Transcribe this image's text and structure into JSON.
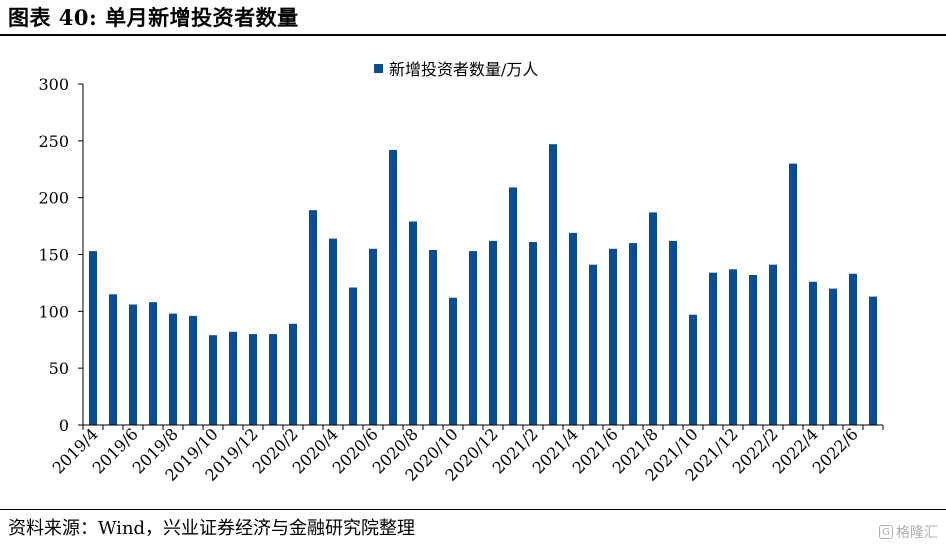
{
  "title": "图表 40:  单月新增投资者数量",
  "source": "资料来源：Wind，兴业证券经济与金融研究院整理",
  "watermark": {
    "icon": "G",
    "text": "格隆汇"
  },
  "colors": {
    "bar": "#0a4d94",
    "axis": "#000000"
  },
  "chart_data": {
    "type": "bar",
    "categories": [
      "2019/4",
      "2019/5",
      "2019/6",
      "2019/7",
      "2019/8",
      "2019/9",
      "2019/10",
      "2019/11",
      "2019/12",
      "2020/1",
      "2020/2",
      "2020/3",
      "2020/4",
      "2020/5",
      "2020/6",
      "2020/7",
      "2020/8",
      "2020/9",
      "2020/10",
      "2020/11",
      "2020/12",
      "2021/1",
      "2021/2",
      "2021/3",
      "2021/4",
      "2021/5",
      "2021/6",
      "2021/7",
      "2021/8",
      "2021/9",
      "2021/10",
      "2021/11",
      "2021/12",
      "2022/1",
      "2022/2",
      "2022/3",
      "2022/4",
      "2022/5",
      "2022/6",
      "2022/7"
    ],
    "tick_labels": [
      "2019/4",
      "2019/6",
      "2019/8",
      "2019/10",
      "2019/12",
      "2020/2",
      "2020/4",
      "2020/6",
      "2020/8",
      "2020/10",
      "2020/12",
      "2021/2",
      "2021/4",
      "2021/6",
      "2021/8",
      "2021/10",
      "2021/12",
      "2022/2",
      "2022/4",
      "2022/6"
    ],
    "series": [
      {
        "name": "新增投资者数量/万人",
        "values": [
          153,
          115,
          106,
          108,
          98,
          96,
          79,
          82,
          80,
          80,
          89,
          189,
          164,
          121,
          155,
          242,
          179,
          154,
          112,
          153,
          162,
          209,
          161,
          247,
          169,
          141,
          155,
          160,
          187,
          162,
          97,
          134,
          137,
          132,
          141,
          230,
          126,
          120,
          133,
          113
        ]
      }
    ],
    "ylim": [
      0,
      300
    ],
    "yticks": [
      0,
      50,
      100,
      150,
      200,
      250,
      300
    ],
    "legend_position": "top-center",
    "grid": false
  }
}
